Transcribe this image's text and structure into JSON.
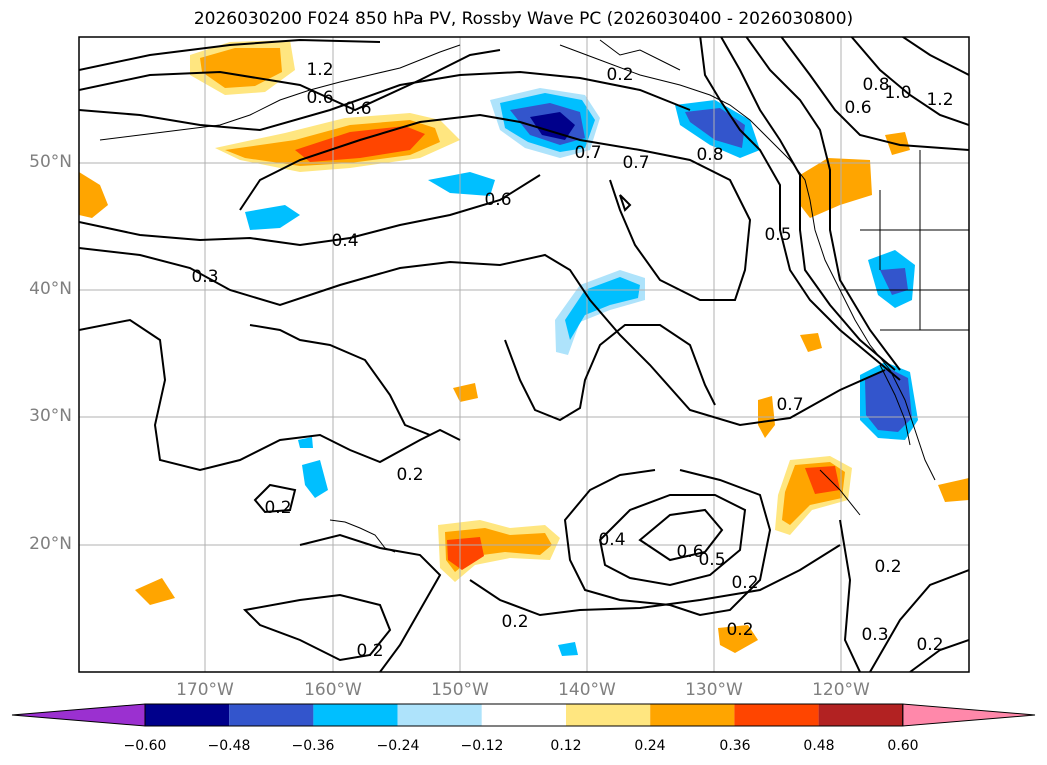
{
  "title": "2026030200 F024 850 hPa PV, Rossby Wave PC (2026030400 - 2026030800)",
  "lat_labels": [
    "50°N",
    "40°N",
    "30°N",
    "20°N"
  ],
  "lon_labels": [
    "170°W",
    "160°W",
    "150°W",
    "140°W",
    "130°W",
    "120°W"
  ],
  "contour_labels": [
    "1.2",
    "0.6",
    "0.6",
    "0.6",
    "0.4",
    "0.3",
    "0.2",
    "0.2",
    "0.2",
    "0.2",
    "0.2",
    "0.2",
    "0.7",
    "0.7",
    "0.8",
    "0.5",
    "0.7",
    "0.4",
    "0.6",
    "0.5",
    "0.2",
    "0.2",
    "0.3",
    "0.2",
    "1.0",
    "1.2",
    "0.8",
    "0.6"
  ],
  "colorbar": {
    "tick_labels": [
      "−0.60",
      "−0.48",
      "−0.36",
      "−0.24",
      "−0.12",
      "0.12",
      "0.24",
      "0.36",
      "0.48",
      "0.60"
    ],
    "colors": [
      "#9b30d0",
      "#00008b",
      "#3355cc",
      "#00bfff",
      "#aee3fb",
      "#ffffff",
      "#ffe680",
      "#ffa500",
      "#ff4500",
      "#b22222",
      "#ff88aa"
    ]
  },
  "colors": {
    "neg_strong": "#00008b",
    "neg_mid": "#3355cc",
    "neg": "#00bfff",
    "neg_light": "#aee3fb",
    "pos_light": "#ffe680",
    "pos": "#ffa500",
    "pos_strong": "#ff4500",
    "grid": "#b0b0b0"
  }
}
